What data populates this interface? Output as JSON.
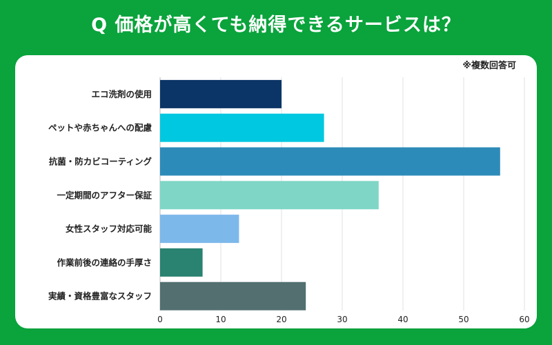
{
  "title": "Q 価格が高くても納得できるサービスは？",
  "note": "※複数回答可",
  "chart_data": {
    "type": "bar",
    "orientation": "horizontal",
    "title": "Q 価格が高くても納得できるサービスは？",
    "categories": [
      "エコ洗剤の使用",
      "ペットや赤ちゃんへの配慮",
      "抗菌・防カビコーティング",
      "一定期間のアフター保証",
      "女性スタッフ対応可能",
      "作業前後の連絡の手厚さ",
      "実績・資格豊富なスタッフ"
    ],
    "values": [
      20,
      27,
      56,
      36,
      13,
      7,
      24
    ],
    "colors": [
      "#0b3566",
      "#00c8e0",
      "#2d8bb9",
      "#7fd6c6",
      "#7db8ea",
      "#2a8271",
      "#536f70"
    ],
    "xlim": [
      0,
      60
    ],
    "xticks": [
      0,
      10,
      20,
      30,
      40,
      50,
      60
    ],
    "grid": true
  }
}
